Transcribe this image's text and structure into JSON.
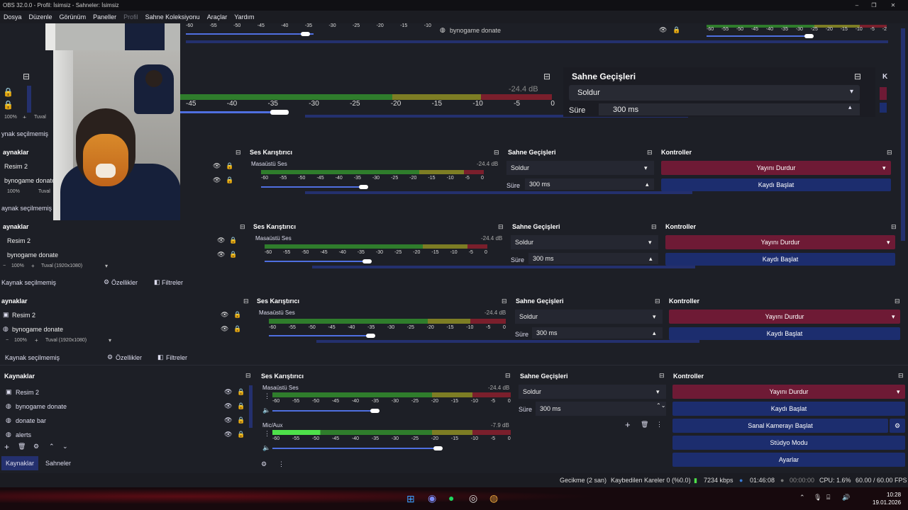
{
  "window": {
    "title": "OBS 32.0.0 - Profil: İsimsiz - Sahneler: İsimsiz"
  },
  "menu": [
    "Dosya",
    "Düzenle",
    "Görünüm",
    "Paneller",
    "Profil",
    "Sahne Koleksiyonu",
    "Araçlar",
    "Yardım"
  ],
  "docks": {
    "sources": "Kaynaklar",
    "sources_short": "aynaklar",
    "mixer": "Ses Karıştırıcı",
    "transitions": "Sahne Geçişleri",
    "controls": "Kontroller",
    "scenes": "Sahneler"
  },
  "no_source": "Kaynak seçilmemiş",
  "no_source_short": "aynak seçilmemiş",
  "no_source_short2": "ynak seçilmemiş",
  "properties": "Özellikler",
  "filters": "Filtreler",
  "zoom": "100%",
  "canvas": "Tuval (1920x1080)",
  "canvas_short": "Tuval",
  "sources_list": [
    "Resim 2",
    "bynogame donate",
    "donate bar",
    "alerts"
  ],
  "mixer": {
    "desktop": {
      "name": "Masaüstü Ses",
      "db": "-24.4 dB"
    },
    "mic": {
      "name": "Mic/Aux",
      "db": "-7.9 dB"
    },
    "ticks": [
      "-60",
      "-55",
      "-50",
      "-45",
      "-40",
      "-35",
      "-30",
      "-25",
      "-20",
      "-15",
      "-10",
      "-5",
      "0"
    ],
    "ticks_big": [
      "-45",
      "-40",
      "-35",
      "-30",
      "-25",
      "-20",
      "-15",
      "-10",
      "-5",
      "0"
    ],
    "ticks_top": [
      "-60",
      "-55",
      "-50",
      "-45",
      "-40",
      "-35",
      "-30",
      "-25",
      "-20",
      "-15",
      "-10"
    ],
    "ticks_top_r": [
      "-60",
      "-55",
      "-50",
      "-45",
      "-40",
      "-35",
      "-30",
      "-25",
      "-20",
      "-15",
      "-10",
      "-5",
      "-2"
    ]
  },
  "transitions": {
    "type": "Soldur",
    "duration_label": "Süre",
    "duration": "300 ms"
  },
  "controls": {
    "stop_stream": "Yayını Durdur",
    "start_record": "Kaydı Başlat",
    "start_record_short": "Kaydı Başlat",
    "virtual_cam": "Sanal Kamerayı Başlat",
    "studio_mode": "Stüdyo Modu",
    "settings": "Ayarlar"
  },
  "top_source": "bynogame donate",
  "status": {
    "delay": "Gecikme (2 san)",
    "dropped": "Kaybedilen Kareler 0 (%0.0)",
    "bitrate": "7234 kbps",
    "stream_time": "01:46:08",
    "rec_time": "00:00:00",
    "cpu": "CPU: 1.6%",
    "fps": "60.00 / 60.00 FPS"
  },
  "clock": {
    "time": "10:28",
    "date": "19.01.2026"
  },
  "colors": {
    "accent_red": "#6e1a35",
    "accent_blue": "#1c2d6e",
    "meter_green": "#2f7d2c"
  }
}
